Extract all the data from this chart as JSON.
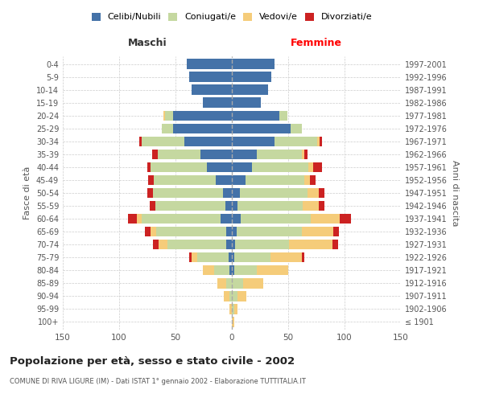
{
  "age_groups": [
    "100+",
    "95-99",
    "90-94",
    "85-89",
    "80-84",
    "75-79",
    "70-74",
    "65-69",
    "60-64",
    "55-59",
    "50-54",
    "45-49",
    "40-44",
    "35-39",
    "30-34",
    "25-29",
    "20-24",
    "15-19",
    "10-14",
    "5-9",
    "0-4"
  ],
  "birth_years": [
    "≤ 1901",
    "1902-1906",
    "1907-1911",
    "1912-1916",
    "1917-1921",
    "1922-1926",
    "1927-1931",
    "1932-1936",
    "1937-1941",
    "1942-1946",
    "1947-1951",
    "1952-1956",
    "1957-1961",
    "1962-1966",
    "1967-1971",
    "1972-1976",
    "1977-1981",
    "1982-1986",
    "1987-1991",
    "1992-1996",
    "1997-2001"
  ],
  "colors": {
    "celibe": "#4472a8",
    "coniugato": "#c5d8a0",
    "vedovo": "#f5cc7a",
    "divorziato": "#cc2222"
  },
  "males": {
    "celibe": [
      0,
      0,
      0,
      0,
      2,
      3,
      5,
      5,
      10,
      6,
      8,
      14,
      22,
      28,
      42,
      52,
      52,
      26,
      36,
      38,
      40
    ],
    "coniugato": [
      0,
      0,
      2,
      5,
      14,
      28,
      52,
      62,
      70,
      62,
      62,
      55,
      50,
      38,
      38,
      10,
      7,
      0,
      0,
      0,
      0
    ],
    "vedovo": [
      0,
      2,
      5,
      8,
      10,
      5,
      8,
      5,
      4,
      0,
      0,
      0,
      0,
      0,
      0,
      0,
      2,
      0,
      0,
      0,
      0
    ],
    "divorziato": [
      0,
      0,
      0,
      0,
      0,
      2,
      5,
      5,
      8,
      5,
      5,
      5,
      3,
      5,
      2,
      0,
      0,
      0,
      0,
      0,
      0
    ]
  },
  "females": {
    "celibe": [
      0,
      0,
      0,
      0,
      2,
      2,
      3,
      4,
      8,
      5,
      7,
      12,
      18,
      22,
      38,
      52,
      42,
      26,
      32,
      35,
      38
    ],
    "coniugato": [
      0,
      2,
      5,
      10,
      20,
      32,
      48,
      58,
      62,
      58,
      60,
      52,
      50,
      40,
      38,
      10,
      7,
      0,
      0,
      0,
      0
    ],
    "vedovo": [
      2,
      3,
      8,
      18,
      28,
      28,
      38,
      28,
      26,
      14,
      10,
      5,
      4,
      2,
      2,
      0,
      0,
      0,
      0,
      0,
      0
    ],
    "divorziato": [
      0,
      0,
      0,
      0,
      0,
      2,
      5,
      5,
      10,
      5,
      5,
      5,
      8,
      3,
      2,
      0,
      0,
      0,
      0,
      0,
      0
    ]
  },
  "title": "Popolazione per età, sesso e stato civile - 2002",
  "subtitle": "COMUNE DI RIVA LIGURE (IM) - Dati ISTAT 1° gennaio 2002 - Elaborazione TUTTITALIA.IT",
  "xlabel_left": "Maschi",
  "xlabel_right": "Femmine",
  "ylabel_left": "Fasce di età",
  "ylabel_right": "Anni di nascita",
  "xlim": 150,
  "legend_labels": [
    "Celibi/Nubili",
    "Coniugati/e",
    "Vedovi/e",
    "Divorziati/e"
  ],
  "background_color": "#ffffff",
  "grid_color": "#cccccc"
}
